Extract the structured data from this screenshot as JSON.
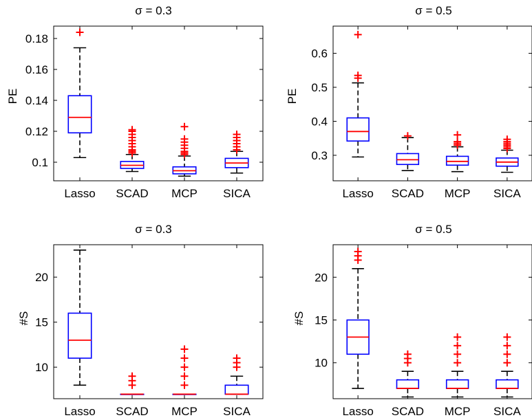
{
  "colors": {
    "box": "#0000ff",
    "median": "#ff0000",
    "outlier": "#ff0000",
    "whisker": "#000000",
    "axis": "#000000"
  },
  "chart_data": [
    {
      "type": "boxplot",
      "title": "σ = 0.3",
      "ylabel": "PE",
      "categories": [
        "Lasso",
        "SCAD",
        "MCP",
        "SICA"
      ],
      "ylim": [
        0.088,
        0.188
      ],
      "yticks": [
        0.1,
        0.12,
        0.14,
        0.16,
        0.18
      ],
      "ytick_labels": [
        "0.1",
        "0.12",
        "0.14",
        "0.16",
        "0.18"
      ],
      "boxes": [
        {
          "whisker_low": 0.103,
          "q1": 0.119,
          "median": 0.129,
          "q3": 0.143,
          "whisker_high": 0.174,
          "outliers": [
            0.184
          ]
        },
        {
          "whisker_low": 0.094,
          "q1": 0.096,
          "median": 0.098,
          "q3": 0.1005,
          "whisker_high": 0.105,
          "outliers": [
            0.106,
            0.107,
            0.108,
            0.11,
            0.112,
            0.114,
            0.116,
            0.118,
            0.12,
            0.121
          ]
        },
        {
          "whisker_low": 0.091,
          "q1": 0.0925,
          "median": 0.0945,
          "q3": 0.097,
          "whisker_high": 0.104,
          "outliers": [
            0.105,
            0.106,
            0.107,
            0.109,
            0.111,
            0.113,
            0.115,
            0.123
          ]
        },
        {
          "whisker_low": 0.093,
          "q1": 0.0965,
          "median": 0.0995,
          "q3": 0.1025,
          "whisker_high": 0.107,
          "outliers": [
            0.108,
            0.11,
            0.112,
            0.114,
            0.116,
            0.118
          ]
        }
      ]
    },
    {
      "type": "boxplot",
      "title": "σ = 0.5",
      "ylabel": "PE",
      "categories": [
        "Lasso",
        "SCAD",
        "MCP",
        "SICA"
      ],
      "ylim": [
        0.225,
        0.68
      ],
      "yticks": [
        0.3,
        0.4,
        0.5,
        0.6
      ],
      "ytick_labels": [
        "0.3",
        "0.4",
        "0.5",
        "0.6"
      ],
      "boxes": [
        {
          "whisker_low": 0.295,
          "q1": 0.342,
          "median": 0.37,
          "q3": 0.41,
          "whisker_high": 0.513,
          "outliers": [
            0.527,
            0.535,
            0.655
          ]
        },
        {
          "whisker_low": 0.255,
          "q1": 0.273,
          "median": 0.287,
          "q3": 0.305,
          "whisker_high": 0.352,
          "outliers": [
            0.357
          ]
        },
        {
          "whisker_low": 0.252,
          "q1": 0.271,
          "median": 0.282,
          "q3": 0.297,
          "whisker_high": 0.325,
          "outliers": [
            0.33,
            0.335,
            0.34,
            0.36
          ]
        },
        {
          "whisker_low": 0.25,
          "q1": 0.268,
          "median": 0.28,
          "q3": 0.292,
          "whisker_high": 0.315,
          "outliers": [
            0.32,
            0.325,
            0.33,
            0.335,
            0.34,
            0.347
          ]
        }
      ]
    },
    {
      "type": "boxplot",
      "title": "σ = 0.3",
      "ylabel": "#S",
      "categories": [
        "Lasso",
        "SCAD",
        "MCP",
        "SICA"
      ],
      "ylim": [
        6.5,
        23.6
      ],
      "yticks": [
        10,
        15,
        20
      ],
      "ytick_labels": [
        "10",
        "15",
        "20"
      ],
      "boxes": [
        {
          "whisker_low": 8,
          "q1": 11,
          "median": 13,
          "q3": 16,
          "whisker_high": 23,
          "outliers": []
        },
        {
          "whisker_low": 7,
          "q1": 7,
          "median": 7,
          "q3": 7,
          "whisker_high": 7,
          "outliers": [
            8,
            8.5,
            9
          ]
        },
        {
          "whisker_low": 7,
          "q1": 7,
          "median": 7,
          "q3": 7,
          "whisker_high": 7,
          "outliers": [
            8,
            9,
            10,
            11,
            12
          ]
        },
        {
          "whisker_low": 7,
          "q1": 7,
          "median": 7,
          "q3": 8,
          "whisker_high": 9,
          "outliers": [
            10,
            10.5,
            11
          ]
        }
      ]
    },
    {
      "type": "boxplot",
      "title": "σ = 0.5",
      "ylabel": "#S",
      "categories": [
        "Lasso",
        "SCAD",
        "MCP",
        "SICA"
      ],
      "ylim": [
        5.8,
        23.8
      ],
      "yticks": [
        10,
        15,
        20
      ],
      "ytick_labels": [
        "10",
        "15",
        "20"
      ],
      "boxes": [
        {
          "whisker_low": 7,
          "q1": 11,
          "median": 13,
          "q3": 15,
          "whisker_high": 21,
          "outliers": [
            22,
            22.5,
            23
          ]
        },
        {
          "whisker_low": 6,
          "q1": 7,
          "median": 7,
          "q3": 8,
          "whisker_high": 9,
          "outliers": [
            10,
            10.5,
            11
          ]
        },
        {
          "whisker_low": 6,
          "q1": 7,
          "median": 7,
          "q3": 8,
          "whisker_high": 9,
          "outliers": [
            10,
            11,
            12,
            13
          ]
        },
        {
          "whisker_low": 6,
          "q1": 7,
          "median": 7,
          "q3": 8,
          "whisker_high": 9,
          "outliers": [
            10,
            11,
            12,
            13
          ]
        }
      ]
    }
  ]
}
